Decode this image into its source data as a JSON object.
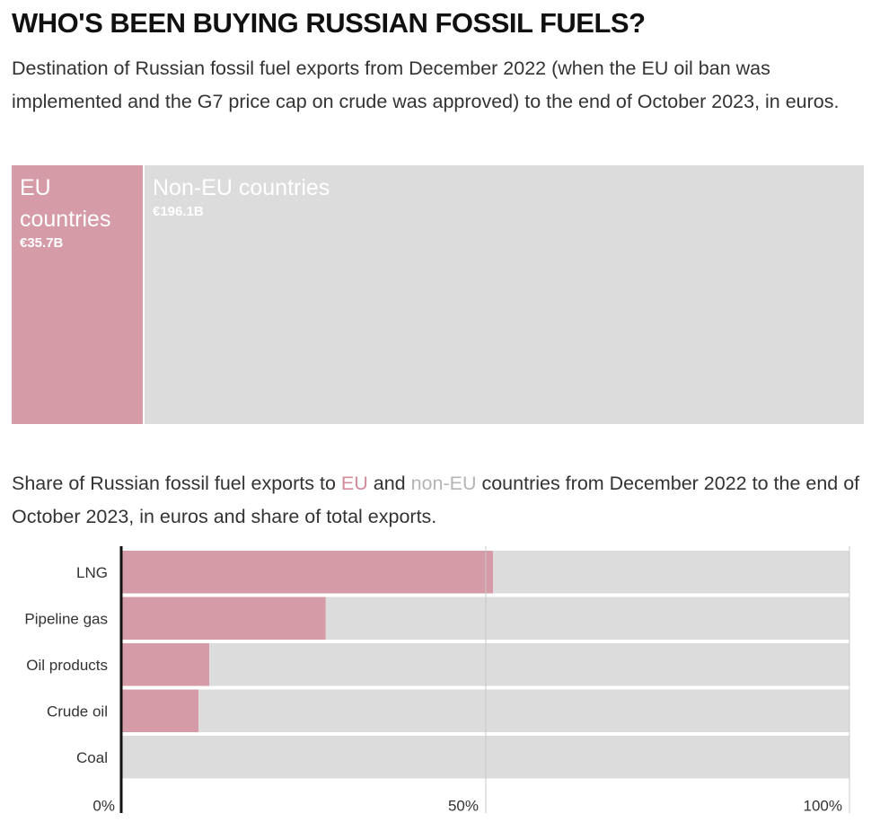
{
  "title": "WHO'S BEEN BUYING RUSSIAN FOSSIL FUELS?",
  "subtitle": "Destination of Russian fossil fuel exports from December 2022 (when the EU oil ban was implemented and the G7 price cap on crude was approved) to the end of October 2023, in euros.",
  "treemap": {
    "eu": {
      "label": "EU countries",
      "value_label": "€35.7B",
      "value": 35.7,
      "color": "#d59ba7"
    },
    "non_eu": {
      "label": "Non-EU countries",
      "value_label": "€196.1B",
      "value": 196.1,
      "color": "#dcdcdc"
    }
  },
  "subtitle2": {
    "before": "Share of Russian fossil fuel exports to ",
    "eu_word": "EU",
    "middle": " and ",
    "noneu_word": "non-EU",
    "after": " countries from December 2022 to the end of October 2023, in euros and share of total exports."
  },
  "chart_data": {
    "type": "bar",
    "orientation": "horizontal",
    "stacked": true,
    "categories": [
      "LNG",
      "Pipeline gas",
      "Oil products",
      "Crude oil",
      "Coal"
    ],
    "series": [
      {
        "name": "EU",
        "color": "#d59ba7",
        "values": [
          51,
          28,
          12,
          10.5,
          0
        ]
      },
      {
        "name": "non-EU",
        "color": "#dcdcdc",
        "values": [
          49,
          72,
          88,
          89.5,
          100
        ]
      }
    ],
    "xlim": [
      0,
      100
    ],
    "ticks": [
      0,
      50,
      100
    ],
    "tick_labels": [
      "0%",
      "50%",
      "100%"
    ],
    "grid": true
  }
}
